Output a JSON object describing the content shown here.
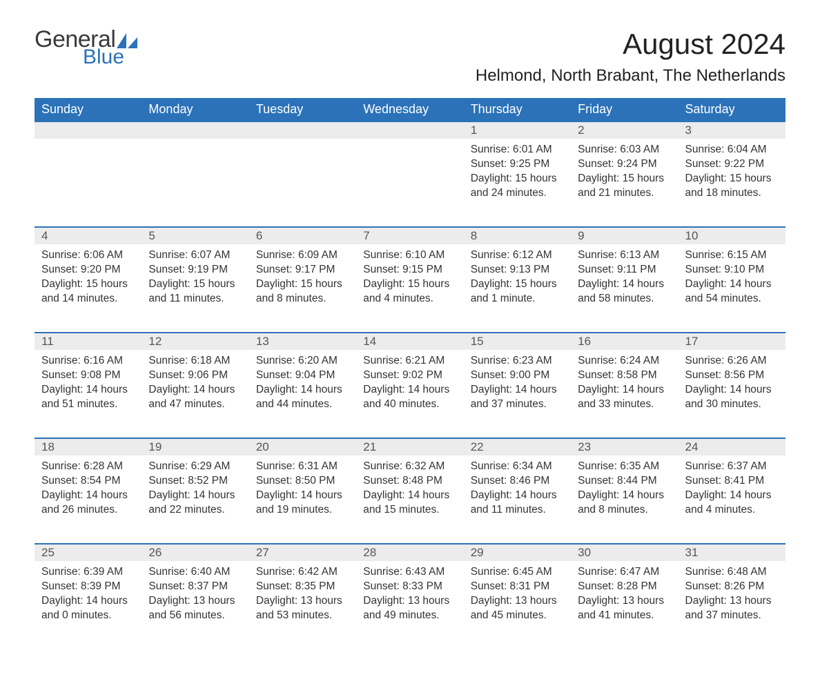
{
  "brand": {
    "word1": "General",
    "word2": "Blue",
    "text_color": "#3a3a3a",
    "accent_color": "#2b72b8"
  },
  "title": "August 2024",
  "location": "Helmond, North Brabant, The Netherlands",
  "colors": {
    "header_bg": "#2b72b8",
    "header_text": "#ffffff",
    "daynum_bg": "#ececec",
    "daynum_text": "#555555",
    "body_text": "#333333",
    "row_border": "#2b72b8",
    "page_bg": "#ffffff"
  },
  "typography": {
    "title_fontsize": 42,
    "location_fontsize": 24,
    "dow_fontsize": 18,
    "daynum_fontsize": 17,
    "cell_fontsize": 15.5
  },
  "columns": [
    "Sunday",
    "Monday",
    "Tuesday",
    "Wednesday",
    "Thursday",
    "Friday",
    "Saturday"
  ],
  "weeks": [
    [
      null,
      null,
      null,
      null,
      {
        "day": "1",
        "sunrise": "Sunrise: 6:01 AM",
        "sunset": "Sunset: 9:25 PM",
        "daylight": "Daylight: 15 hours and 24 minutes."
      },
      {
        "day": "2",
        "sunrise": "Sunrise: 6:03 AM",
        "sunset": "Sunset: 9:24 PM",
        "daylight": "Daylight: 15 hours and 21 minutes."
      },
      {
        "day": "3",
        "sunrise": "Sunrise: 6:04 AM",
        "sunset": "Sunset: 9:22 PM",
        "daylight": "Daylight: 15 hours and 18 minutes."
      }
    ],
    [
      {
        "day": "4",
        "sunrise": "Sunrise: 6:06 AM",
        "sunset": "Sunset: 9:20 PM",
        "daylight": "Daylight: 15 hours and 14 minutes."
      },
      {
        "day": "5",
        "sunrise": "Sunrise: 6:07 AM",
        "sunset": "Sunset: 9:19 PM",
        "daylight": "Daylight: 15 hours and 11 minutes."
      },
      {
        "day": "6",
        "sunrise": "Sunrise: 6:09 AM",
        "sunset": "Sunset: 9:17 PM",
        "daylight": "Daylight: 15 hours and 8 minutes."
      },
      {
        "day": "7",
        "sunrise": "Sunrise: 6:10 AM",
        "sunset": "Sunset: 9:15 PM",
        "daylight": "Daylight: 15 hours and 4 minutes."
      },
      {
        "day": "8",
        "sunrise": "Sunrise: 6:12 AM",
        "sunset": "Sunset: 9:13 PM",
        "daylight": "Daylight: 15 hours and 1 minute."
      },
      {
        "day": "9",
        "sunrise": "Sunrise: 6:13 AM",
        "sunset": "Sunset: 9:11 PM",
        "daylight": "Daylight: 14 hours and 58 minutes."
      },
      {
        "day": "10",
        "sunrise": "Sunrise: 6:15 AM",
        "sunset": "Sunset: 9:10 PM",
        "daylight": "Daylight: 14 hours and 54 minutes."
      }
    ],
    [
      {
        "day": "11",
        "sunrise": "Sunrise: 6:16 AM",
        "sunset": "Sunset: 9:08 PM",
        "daylight": "Daylight: 14 hours and 51 minutes."
      },
      {
        "day": "12",
        "sunrise": "Sunrise: 6:18 AM",
        "sunset": "Sunset: 9:06 PM",
        "daylight": "Daylight: 14 hours and 47 minutes."
      },
      {
        "day": "13",
        "sunrise": "Sunrise: 6:20 AM",
        "sunset": "Sunset: 9:04 PM",
        "daylight": "Daylight: 14 hours and 44 minutes."
      },
      {
        "day": "14",
        "sunrise": "Sunrise: 6:21 AM",
        "sunset": "Sunset: 9:02 PM",
        "daylight": "Daylight: 14 hours and 40 minutes."
      },
      {
        "day": "15",
        "sunrise": "Sunrise: 6:23 AM",
        "sunset": "Sunset: 9:00 PM",
        "daylight": "Daylight: 14 hours and 37 minutes."
      },
      {
        "day": "16",
        "sunrise": "Sunrise: 6:24 AM",
        "sunset": "Sunset: 8:58 PM",
        "daylight": "Daylight: 14 hours and 33 minutes."
      },
      {
        "day": "17",
        "sunrise": "Sunrise: 6:26 AM",
        "sunset": "Sunset: 8:56 PM",
        "daylight": "Daylight: 14 hours and 30 minutes."
      }
    ],
    [
      {
        "day": "18",
        "sunrise": "Sunrise: 6:28 AM",
        "sunset": "Sunset: 8:54 PM",
        "daylight": "Daylight: 14 hours and 26 minutes."
      },
      {
        "day": "19",
        "sunrise": "Sunrise: 6:29 AM",
        "sunset": "Sunset: 8:52 PM",
        "daylight": "Daylight: 14 hours and 22 minutes."
      },
      {
        "day": "20",
        "sunrise": "Sunrise: 6:31 AM",
        "sunset": "Sunset: 8:50 PM",
        "daylight": "Daylight: 14 hours and 19 minutes."
      },
      {
        "day": "21",
        "sunrise": "Sunrise: 6:32 AM",
        "sunset": "Sunset: 8:48 PM",
        "daylight": "Daylight: 14 hours and 15 minutes."
      },
      {
        "day": "22",
        "sunrise": "Sunrise: 6:34 AM",
        "sunset": "Sunset: 8:46 PM",
        "daylight": "Daylight: 14 hours and 11 minutes."
      },
      {
        "day": "23",
        "sunrise": "Sunrise: 6:35 AM",
        "sunset": "Sunset: 8:44 PM",
        "daylight": "Daylight: 14 hours and 8 minutes."
      },
      {
        "day": "24",
        "sunrise": "Sunrise: 6:37 AM",
        "sunset": "Sunset: 8:41 PM",
        "daylight": "Daylight: 14 hours and 4 minutes."
      }
    ],
    [
      {
        "day": "25",
        "sunrise": "Sunrise: 6:39 AM",
        "sunset": "Sunset: 8:39 PM",
        "daylight": "Daylight: 14 hours and 0 minutes."
      },
      {
        "day": "26",
        "sunrise": "Sunrise: 6:40 AM",
        "sunset": "Sunset: 8:37 PM",
        "daylight": "Daylight: 13 hours and 56 minutes."
      },
      {
        "day": "27",
        "sunrise": "Sunrise: 6:42 AM",
        "sunset": "Sunset: 8:35 PM",
        "daylight": "Daylight: 13 hours and 53 minutes."
      },
      {
        "day": "28",
        "sunrise": "Sunrise: 6:43 AM",
        "sunset": "Sunset: 8:33 PM",
        "daylight": "Daylight: 13 hours and 49 minutes."
      },
      {
        "day": "29",
        "sunrise": "Sunrise: 6:45 AM",
        "sunset": "Sunset: 8:31 PM",
        "daylight": "Daylight: 13 hours and 45 minutes."
      },
      {
        "day": "30",
        "sunrise": "Sunrise: 6:47 AM",
        "sunset": "Sunset: 8:28 PM",
        "daylight": "Daylight: 13 hours and 41 minutes."
      },
      {
        "day": "31",
        "sunrise": "Sunrise: 6:48 AM",
        "sunset": "Sunset: 8:26 PM",
        "daylight": "Daylight: 13 hours and 37 minutes."
      }
    ]
  ]
}
